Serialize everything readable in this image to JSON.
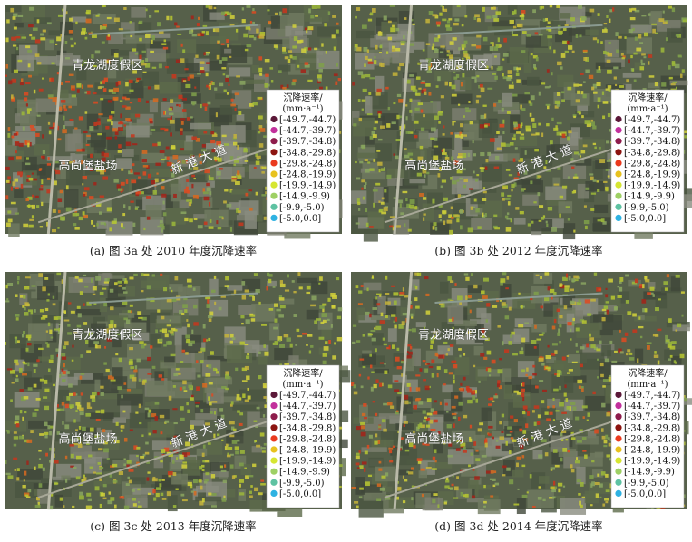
{
  "legend": {
    "title": "沉降速率/",
    "unit": "(mm·a⁻¹)",
    "items": [
      {
        "label": "[-49.7,-44.7)",
        "color": "#5b1838"
      },
      {
        "label": "[-44.7,-39.7)",
        "color": "#c2309c"
      },
      {
        "label": "[-39.7,-34.8)",
        "color": "#8e1c4c"
      },
      {
        "label": "[-34.8,-29.8)",
        "color": "#8c1410"
      },
      {
        "label": "[-29.8,-24.8)",
        "color": "#ea3a1e"
      },
      {
        "label": "[-24.8,-19.9)",
        "color": "#e8c21e"
      },
      {
        "label": "[-19.9,-14.9)",
        "color": "#d6e632"
      },
      {
        "label": "[-14.9,-9.9)",
        "color": "#9ed064"
      },
      {
        "label": "[-9.9,-5.0)",
        "color": "#5ec2a2"
      },
      {
        "label": "[-5.0,0.0]",
        "color": "#2eb2e2"
      }
    ]
  },
  "panels": [
    {
      "caption": "(a) 图 3a 处 2010 年度沉降速率",
      "places": [
        "青龙湖度假区",
        "高尚堡盐场",
        "新 港 大 道"
      ]
    },
    {
      "caption": "(b) 图 3b 处 2012 年度沉降速率",
      "places": [
        "青龙湖度假区",
        "高尚堡盐场",
        "新 港 大 道"
      ]
    },
    {
      "caption": "(c) 图 3c 处 2013 年度沉降速率",
      "places": [
        "青龙湖度假区",
        "高尚堡盐场",
        "新 港 大 道"
      ]
    },
    {
      "caption": "(d) 图 3d 处 2014 年度沉降速率",
      "places": [
        "青龙湖度假区",
        "高尚堡盐场",
        "新 港 大 道"
      ]
    }
  ]
}
